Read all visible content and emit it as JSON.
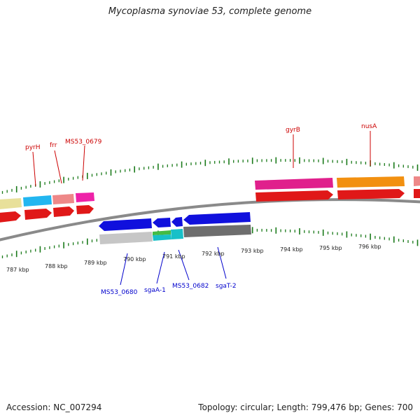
{
  "title": "Mycoplasma synoviae 53, complete genome",
  "footer": {
    "accession": "Accession: NC_007294",
    "topology": "Topology: circular; Length: 799,476 bp; Genes: 700"
  },
  "colors": {
    "backbone": "#8a8a8a",
    "tick": "#1a7a1a",
    "forward_label": "#cc0000",
    "reverse_label": "#0000cc"
  },
  "scale": {
    "unit": "kbp",
    "forward_ticks": [
      "787 kbp",
      "788 kbp",
      "789 kbp",
      "790 kbp",
      "791 kbp",
      "792 kbp",
      "793 kbp",
      "794 kbp",
      "795 kbp",
      "796 kbp"
    ]
  },
  "genes": {
    "forward_labels": [
      "pyrH",
      "frr",
      "MS53_0679",
      "gyrB",
      "nusA"
    ],
    "reverse_labels": [
      "MS53_0680",
      "sgaA-1",
      "MS53_0682",
      "sgaT-2"
    ]
  }
}
